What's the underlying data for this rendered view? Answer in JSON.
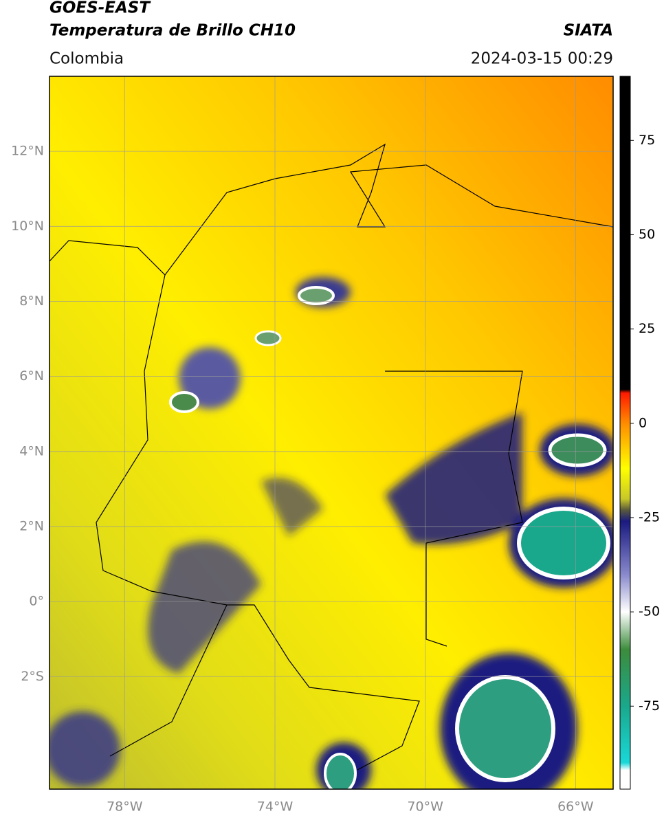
{
  "header": {
    "satellite": "GOES-EAST",
    "product": "Temperatura de Brillo CH10",
    "source": "SIATA",
    "region": "Colombia",
    "datetime": "2024-03-15 00:29"
  },
  "map": {
    "xlim": [
      -80,
      -65
    ],
    "ylim": [
      -5,
      14
    ],
    "xticks": [
      {
        "value": -78,
        "label": "78°W"
      },
      {
        "value": -74,
        "label": "74°W"
      },
      {
        "value": -70,
        "label": "70°W"
      },
      {
        "value": -66,
        "label": "66°W"
      }
    ],
    "yticks": [
      {
        "value": 12,
        "label": "12°N"
      },
      {
        "value": 10,
        "label": "10°N"
      },
      {
        "value": 8,
        "label": "8°N"
      },
      {
        "value": 6,
        "label": "6°N"
      },
      {
        "value": 4,
        "label": "4°N"
      },
      {
        "value": 2,
        "label": "2°N"
      },
      {
        "value": 0,
        "label": "0°"
      },
      {
        "value": -2,
        "label": "2°S"
      }
    ],
    "grid": true
  },
  "colorbar": {
    "lim": [
      -97,
      92
    ],
    "ticks": [
      75,
      50,
      25,
      0,
      -25,
      -50,
      -75
    ],
    "colormap": [
      {
        "value": 92,
        "color": "#000000"
      },
      {
        "value": 9,
        "color": "#000000"
      },
      {
        "value": 8,
        "color": "#ff1a00"
      },
      {
        "value": 0,
        "color": "#ff8c00"
      },
      {
        "value": -12,
        "color": "#ffff00"
      },
      {
        "value": -20,
        "color": "#c8c828"
      },
      {
        "value": -23,
        "color": "#5a5a3c"
      },
      {
        "value": -26,
        "color": "#1a1a80"
      },
      {
        "value": -40,
        "color": "#8888cc"
      },
      {
        "value": -50,
        "color": "#ffffff"
      },
      {
        "value": -60,
        "color": "#3c8c3c"
      },
      {
        "value": -75,
        "color": "#1aa88c"
      },
      {
        "value": -90,
        "color": "#1ad8d8"
      },
      {
        "value": -92,
        "color": "#ffffff"
      },
      {
        "value": -97,
        "color": "#ffffff"
      }
    ]
  }
}
